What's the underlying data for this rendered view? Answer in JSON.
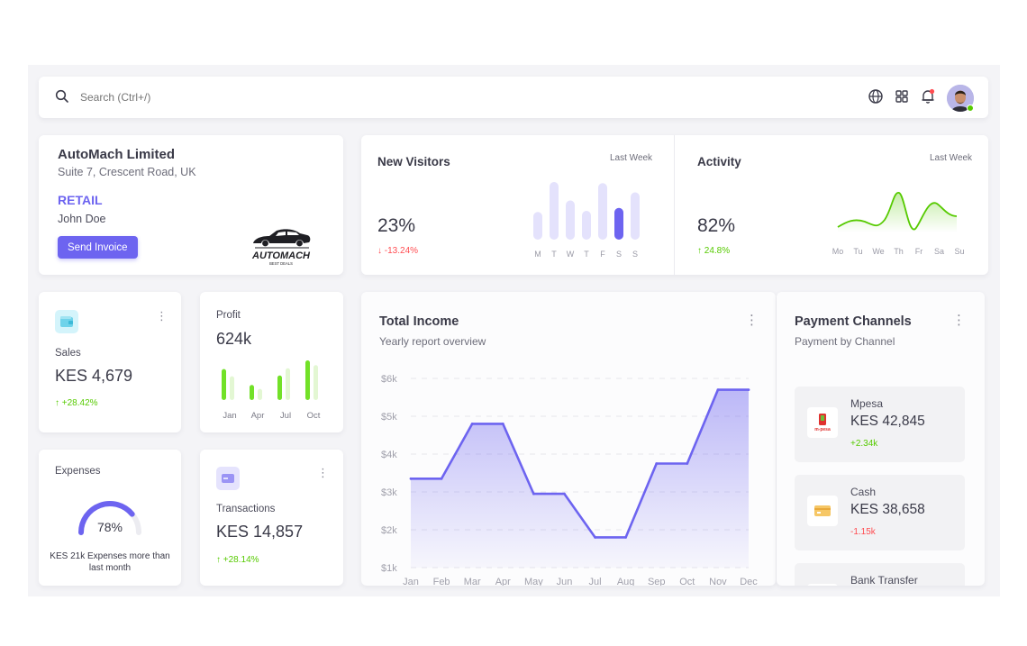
{
  "search": {
    "placeholder": "Search (Ctrl+/)"
  },
  "header_icons": [
    "globe-icon",
    "grid-icon",
    "bell-icon"
  ],
  "company": {
    "name": "AutoMach Limited",
    "address": "Suite 7, Crescent Road, UK",
    "type": "RETAIL",
    "contact": "John Doe",
    "button": "Send Invoice",
    "logo_text": "AUTOMACH",
    "logo_sub": "BEST DEALS"
  },
  "visitors": {
    "title": "New Visitors",
    "period": "Last Week",
    "value": "23%",
    "delta": "-13.24%",
    "days": [
      "M",
      "T",
      "W",
      "T",
      "F",
      "S",
      "S"
    ],
    "bars": [
      0.48,
      1.0,
      0.68,
      0.5,
      0.98,
      0.55,
      0.82
    ],
    "highlight_index": 5
  },
  "activity": {
    "title": "Activity",
    "period": "Last Week",
    "value": "82%",
    "delta": "24.8%",
    "days": [
      "Mo",
      "Tu",
      "We",
      "Th",
      "Fr",
      "Sa",
      "Su"
    ]
  },
  "sales": {
    "label": "Sales",
    "value": "KES 4,679",
    "delta": "+28.42%"
  },
  "profit": {
    "label": "Profit",
    "value": "624k",
    "months": [
      "Jan",
      "Apr",
      "Jul",
      "Oct"
    ],
    "bars": [
      [
        0.78,
        0.6
      ],
      [
        0.38,
        0.28
      ],
      [
        0.62,
        0.8
      ],
      [
        1.0,
        0.88
      ]
    ]
  },
  "expenses": {
    "label": "Expenses",
    "percent": "78%",
    "ratio": 0.78,
    "note": "KES 21k Expenses more than last month"
  },
  "transactions": {
    "label": "Transactions",
    "value": "KES 14,857",
    "delta": "+28.14%"
  },
  "income": {
    "title": "Total Income",
    "subtitle": "Yearly report overview"
  },
  "chart_data": {
    "type": "area",
    "title": "Total Income",
    "categories": [
      "Jan",
      "Feb",
      "Mar",
      "Apr",
      "May",
      "Jun",
      "Jul",
      "Aug",
      "Sep",
      "Oct",
      "Nov",
      "Dec"
    ],
    "series": [
      {
        "values": [
          3350,
          3350,
          4800,
          4800,
          2950,
          2950,
          1800,
          1800,
          3750,
          3750,
          5700,
          5700
        ]
      }
    ],
    "y_ticks": [
      "$1k",
      "$2k",
      "$3k",
      "$4k",
      "$5k",
      "$6k"
    ],
    "ylim": [
      1000,
      6000
    ],
    "color": "#6d64f0",
    "grid": true
  },
  "payment": {
    "title": "Payment Channels",
    "subtitle": "Payment by Channel",
    "items": [
      {
        "name": "Mpesa",
        "amount": "KES 42,845",
        "delta": "+2.34k",
        "trend": "up",
        "logo_text": "m-pesa"
      },
      {
        "name": "Cash",
        "amount": "KES 38,658",
        "delta": "-1.15k",
        "trend": "down"
      },
      {
        "name": "Bank Transfer",
        "amount": "",
        "delta": "",
        "trend": ""
      }
    ]
  },
  "colors": {
    "primary": "#6d64f0",
    "success": "#56ca00",
    "error": "#ff4c51",
    "background": "#f4f4f7"
  }
}
